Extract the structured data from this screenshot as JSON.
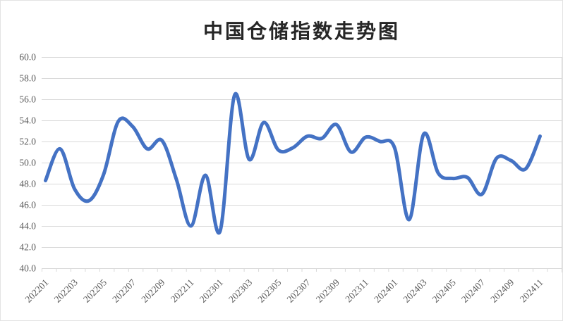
{
  "title": "中国仓储指数走势图",
  "chart_data": {
    "type": "line",
    "title": "中国仓储指数走势图",
    "x": [
      "202201",
      "202202",
      "202203",
      "202204",
      "202205",
      "202206",
      "202207",
      "202208",
      "202209",
      "202210",
      "202211",
      "202212",
      "202301",
      "202302",
      "202303",
      "202304",
      "202305",
      "202306",
      "202307",
      "202308",
      "202309",
      "202310",
      "202311",
      "202312",
      "202401",
      "202402",
      "202403",
      "202404",
      "202405",
      "202406",
      "202407",
      "202408",
      "202409",
      "202410",
      "202411"
    ],
    "values": [
      48.3,
      51.3,
      47.5,
      46.4,
      48.9,
      53.9,
      53.4,
      51.3,
      52.1,
      48.4,
      44.0,
      48.8,
      43.5,
      56.4,
      50.3,
      53.8,
      51.2,
      51.4,
      52.5,
      52.3,
      53.6,
      51.0,
      52.4,
      52.0,
      51.4,
      44.6,
      52.7,
      49.0,
      48.5,
      48.6,
      47.0,
      50.4,
      50.2,
      49.4,
      52.5
    ],
    "ylim": [
      40.0,
      60.0
    ],
    "ytick_step": 2.0,
    "y_label_decimals": 1,
    "x_label_every": 2,
    "grid": "horizontal",
    "legend": "none",
    "smooth": true,
    "colors": {
      "line": "#4472C4",
      "grid": "#D9D9D9",
      "ticks": "#D9D9D9",
      "axis_labels": "#595959",
      "title": "#262626",
      "background": "#FFFFFF"
    }
  }
}
